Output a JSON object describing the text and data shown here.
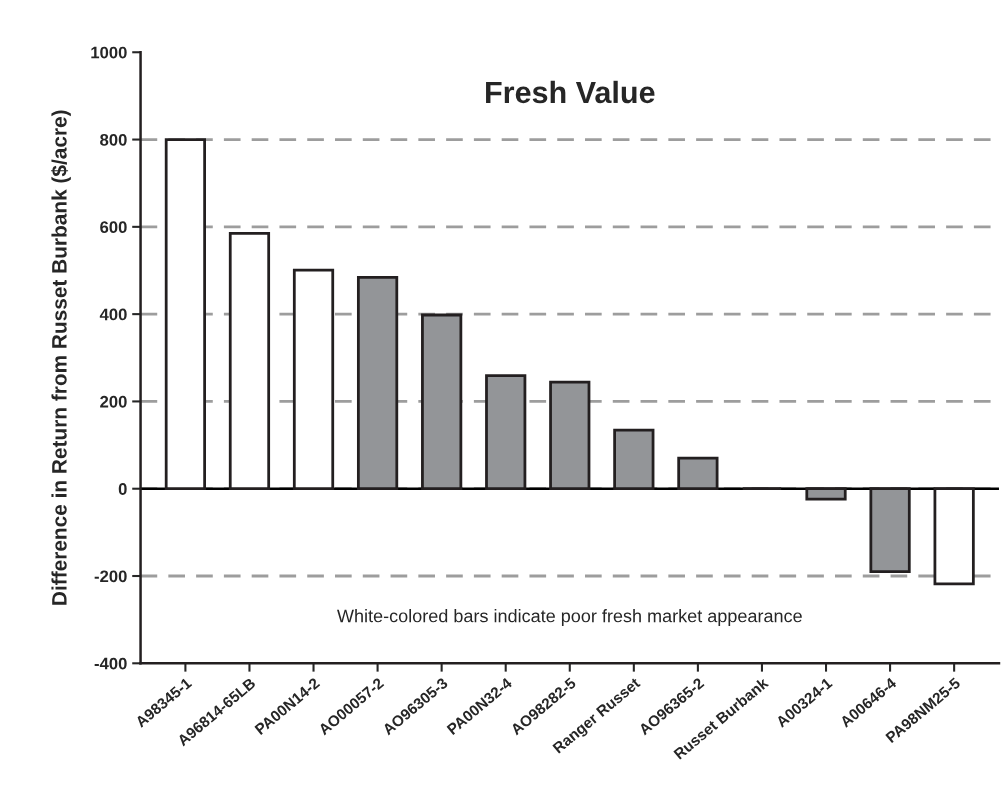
{
  "chart_data": {
    "type": "bar",
    "title": "Fresh Value",
    "ylabel": "Difference in Return from Russet Burbank ($/acre)",
    "categories": [
      "A98345-1",
      "A96814-65LB",
      "PA00N14-2",
      "AO00057-2",
      "AO96305-3",
      "PA00N32-4",
      "AO98282-5",
      "Ranger Russet",
      "AO96365-2",
      "Russet Burbank",
      "A00324-1",
      "A00646-4",
      "PA98NM25-5"
    ],
    "values": [
      800,
      585,
      501,
      484,
      398,
      259,
      244,
      134,
      70,
      0,
      -24,
      -190,
      -218
    ],
    "colors": [
      "#ffffff",
      "#ffffff",
      "#ffffff",
      "#939598",
      "#939598",
      "#939598",
      "#939598",
      "#939598",
      "#939598",
      "#231f20",
      "#939598",
      "#939598",
      "#ffffff"
    ],
    "ylim": [
      -400,
      1000
    ],
    "yticks": [
      -400,
      -200,
      0,
      200,
      400,
      600,
      800,
      1000
    ],
    "grid": "y",
    "legend": false,
    "ref_lines": [
      {
        "axis": "y",
        "value": 0,
        "color": "#000000",
        "line_style": "solid"
      }
    ],
    "annotations": [
      "White-colored bars indicate poor fresh market appearance"
    ]
  }
}
